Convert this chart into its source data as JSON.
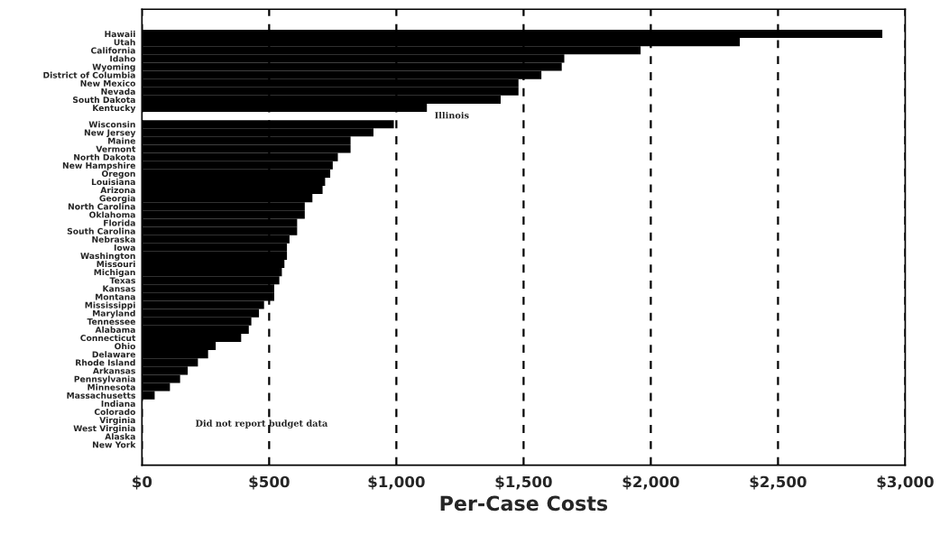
{
  "chart_data": {
    "type": "bar",
    "orientation": "horizontal",
    "xlabel": "Per-Case Costs",
    "categories": [
      "Hawaii",
      "Utah",
      "California",
      "Idaho",
      "Wyoming",
      "District of Columbia",
      "New Mexico",
      "Nevada",
      "South Dakota",
      "Kentucky",
      null,
      "Wisconsin",
      "New Jersey",
      "Maine",
      "Vermont",
      "North Dakota",
      "New Hampshire",
      "Oregon",
      "Louisiana",
      "Arizona",
      "Georgia",
      "North Carolina",
      "Oklahoma",
      "Florida",
      "South Carolina",
      "Nebraska",
      "Iowa",
      "Washington",
      "Missouri",
      "Michigan",
      "Texas",
      "Kansas",
      "Montana",
      "Mississippi",
      "Maryland",
      "Tennessee",
      "Alabama",
      "Connecticut",
      "Ohio",
      "Delaware",
      "Rhode Island",
      "Arkansas",
      "Pennsylvania",
      "Minnesota",
      "Massachusetts",
      "Indiana",
      "Colorado",
      "Virginia",
      "West Virginia",
      "Alaska",
      "New York"
    ],
    "values": [
      2910,
      2350,
      1960,
      1660,
      1650,
      1570,
      1480,
      1480,
      1410,
      1120,
      null,
      990,
      910,
      820,
      820,
      770,
      750,
      740,
      720,
      710,
      670,
      640,
      640,
      610,
      610,
      580,
      570,
      570,
      560,
      550,
      540,
      520,
      520,
      480,
      460,
      430,
      420,
      390,
      290,
      260,
      220,
      180,
      150,
      110,
      50,
      null,
      null,
      null,
      null,
      null,
      null
    ],
    "color": "#000000",
    "xlim": [
      0,
      3000
    ],
    "xticks": [
      {
        "value": 0,
        "label": "$0"
      },
      {
        "value": 500,
        "label": "$500"
      },
      {
        "value": 1000,
        "label": "$1,000"
      },
      {
        "value": 1500,
        "label": "$1,500"
      },
      {
        "value": 2000,
        "label": "$2,000"
      },
      {
        "value": 2500,
        "label": "$2,500"
      },
      {
        "value": 3000,
        "label": "$3,000"
      }
    ],
    "grid": "x",
    "line_style": "dashed",
    "annotations": [
      "Illinois",
      "Did not report budget data"
    ]
  }
}
